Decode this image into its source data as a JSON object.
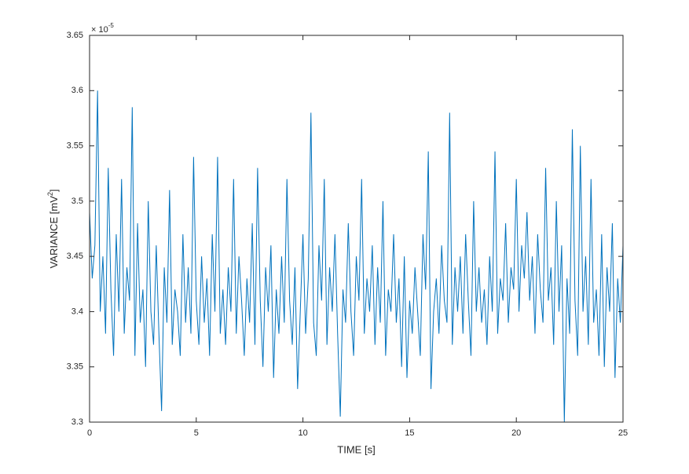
{
  "chart_data": {
    "type": "line",
    "xlabel": "TIME [s]",
    "ylabel": {
      "text": "VARIANCE [mV",
      "sup": "2",
      "end": "]"
    },
    "y_multiplier": {
      "base": "× 10",
      "exponent": "-5"
    },
    "color": "#0072bd",
    "xlim": [
      0,
      25
    ],
    "xticks": [
      0,
      5,
      10,
      15,
      20,
      25
    ],
    "ylim": [
      3.3,
      3.65
    ],
    "yticks": [
      3.3,
      3.35,
      3.4,
      3.45,
      3.5,
      3.55,
      3.6,
      3.65
    ],
    "grid": false,
    "x": [
      0,
      0.125,
      0.25,
      0.375,
      0.5,
      0.625,
      0.75,
      0.875,
      1,
      1.125,
      1.25,
      1.375,
      1.5,
      1.625,
      1.75,
      1.875,
      2,
      2.125,
      2.25,
      2.375,
      2.5,
      2.625,
      2.75,
      2.875,
      3,
      3.125,
      3.25,
      3.375,
      3.5,
      3.625,
      3.75,
      3.875,
      4,
      4.125,
      4.25,
      4.375,
      4.5,
      4.625,
      4.75,
      4.875,
      5,
      5.125,
      5.25,
      5.375,
      5.5,
      5.625,
      5.75,
      5.875,
      6,
      6.125,
      6.25,
      6.375,
      6.5,
      6.625,
      6.75,
      6.875,
      7,
      7.125,
      7.25,
      7.375,
      7.5,
      7.625,
      7.75,
      7.875,
      8,
      8.125,
      8.25,
      8.375,
      8.5,
      8.625,
      8.75,
      8.875,
      9,
      9.125,
      9.25,
      9.375,
      9.5,
      9.625,
      9.75,
      9.875,
      10,
      10.125,
      10.25,
      10.375,
      10.5,
      10.625,
      10.75,
      10.875,
      11,
      11.125,
      11.25,
      11.375,
      11.5,
      11.625,
      11.75,
      11.875,
      12,
      12.125,
      12.25,
      12.375,
      12.5,
      12.625,
      12.75,
      12.875,
      13,
      13.125,
      13.25,
      13.375,
      13.5,
      13.625,
      13.75,
      13.875,
      14,
      14.125,
      14.25,
      14.375,
      14.5,
      14.625,
      14.75,
      14.875,
      15,
      15.125,
      15.25,
      15.375,
      15.5,
      15.625,
      15.75,
      15.875,
      16,
      16.125,
      16.25,
      16.375,
      16.5,
      16.625,
      16.75,
      16.875,
      17,
      17.125,
      17.25,
      17.375,
      17.5,
      17.625,
      17.75,
      17.875,
      18,
      18.125,
      18.25,
      18.375,
      18.5,
      18.625,
      18.75,
      18.875,
      19,
      19.125,
      19.25,
      19.375,
      19.5,
      19.625,
      19.75,
      19.875,
      20,
      20.125,
      20.25,
      20.375,
      20.5,
      20.625,
      20.75,
      20.875,
      21,
      21.125,
      21.25,
      21.375,
      21.5,
      21.625,
      21.75,
      21.875,
      22,
      22.125,
      22.25,
      22.375,
      22.5,
      22.625,
      22.75,
      22.875,
      23,
      23.125,
      23.25,
      23.375,
      23.5,
      23.625,
      23.75,
      23.875,
      24,
      24.125,
      24.25,
      24.375,
      24.5,
      24.625,
      24.75,
      24.875,
      25
    ],
    "values": [
      3.49,
      3.43,
      3.46,
      3.6,
      3.4,
      3.45,
      3.38,
      3.53,
      3.42,
      3.36,
      3.47,
      3.4,
      3.52,
      3.38,
      3.44,
      3.41,
      3.585,
      3.36,
      3.48,
      3.39,
      3.42,
      3.35,
      3.5,
      3.4,
      3.37,
      3.46,
      3.38,
      3.31,
      3.44,
      3.39,
      3.51,
      3.37,
      3.42,
      3.4,
      3.36,
      3.47,
      3.39,
      3.44,
      3.38,
      3.54,
      3.41,
      3.37,
      3.45,
      3.39,
      3.43,
      3.36,
      3.47,
      3.4,
      3.54,
      3.38,
      3.42,
      3.37,
      3.44,
      3.4,
      3.52,
      3.38,
      3.45,
      3.41,
      3.36,
      3.43,
      3.39,
      3.48,
      3.37,
      3.53,
      3.41,
      3.35,
      3.44,
      3.4,
      3.46,
      3.34,
      3.42,
      3.38,
      3.45,
      3.39,
      3.52,
      3.41,
      3.37,
      3.44,
      3.33,
      3.4,
      3.47,
      3.38,
      3.43,
      3.58,
      3.39,
      3.36,
      3.46,
      3.41,
      3.52,
      3.37,
      3.44,
      3.4,
      3.47,
      3.38,
      3.305,
      3.42,
      3.39,
      3.48,
      3.4,
      3.36,
      3.45,
      3.41,
      3.52,
      3.38,
      3.43,
      3.4,
      3.46,
      3.37,
      3.44,
      3.39,
      3.5,
      3.36,
      3.42,
      3.4,
      3.47,
      3.39,
      3.43,
      3.35,
      3.45,
      3.34,
      3.41,
      3.38,
      3.44,
      3.4,
      3.36,
      3.47,
      3.42,
      3.545,
      3.33,
      3.4,
      3.43,
      3.38,
      3.46,
      3.41,
      3.39,
      3.58,
      3.37,
      3.44,
      3.4,
      3.45,
      3.38,
      3.47,
      3.41,
      3.36,
      3.5,
      3.4,
      3.44,
      3.39,
      3.42,
      3.37,
      3.45,
      3.4,
      3.545,
      3.38,
      3.43,
      3.41,
      3.48,
      3.39,
      3.44,
      3.42,
      3.52,
      3.4,
      3.46,
      3.43,
      3.49,
      3.41,
      3.45,
      3.38,
      3.47,
      3.42,
      3.39,
      3.53,
      3.41,
      3.44,
      3.37,
      3.5,
      3.4,
      3.46,
      3.3,
      3.43,
      3.38,
      3.565,
      3.41,
      3.36,
      3.55,
      3.4,
      3.45,
      3.37,
      3.52,
      3.39,
      3.42,
      3.36,
      3.47,
      3.35,
      3.44,
      3.4,
      3.48,
      3.34,
      3.43,
      3.39,
      3.46
    ]
  }
}
